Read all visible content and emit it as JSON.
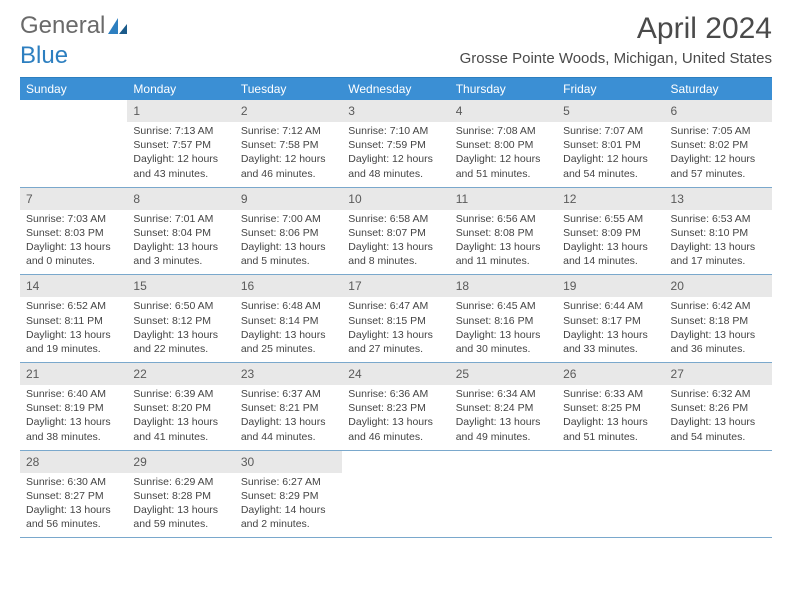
{
  "logo": {
    "text1": "General",
    "text2": "Blue"
  },
  "title": "April 2024",
  "location": "Grosse Pointe Woods, Michigan, United States",
  "colors": {
    "header_bg": "#3b8fd4",
    "header_text": "#ffffff",
    "rule": "#7aa8cc",
    "shade": "#e8e8e8",
    "text": "#444444",
    "title_text": "#4a4a4a"
  },
  "typography": {
    "title_fontsize": 30,
    "location_fontsize": 15,
    "dow_fontsize": 12,
    "daynum_fontsize": 12,
    "info_fontsize": 10.5
  },
  "layout": {
    "columns": 7,
    "rows": 5,
    "cell_min_height": 84
  },
  "dow": [
    "Sunday",
    "Monday",
    "Tuesday",
    "Wednesday",
    "Thursday",
    "Friday",
    "Saturday"
  ],
  "weeks": [
    [
      {
        "n": "",
        "sr": "",
        "ss": "",
        "dl": ""
      },
      {
        "n": "1",
        "sr": "Sunrise: 7:13 AM",
        "ss": "Sunset: 7:57 PM",
        "dl": "Daylight: 12 hours and 43 minutes."
      },
      {
        "n": "2",
        "sr": "Sunrise: 7:12 AM",
        "ss": "Sunset: 7:58 PM",
        "dl": "Daylight: 12 hours and 46 minutes."
      },
      {
        "n": "3",
        "sr": "Sunrise: 7:10 AM",
        "ss": "Sunset: 7:59 PM",
        "dl": "Daylight: 12 hours and 48 minutes."
      },
      {
        "n": "4",
        "sr": "Sunrise: 7:08 AM",
        "ss": "Sunset: 8:00 PM",
        "dl": "Daylight: 12 hours and 51 minutes."
      },
      {
        "n": "5",
        "sr": "Sunrise: 7:07 AM",
        "ss": "Sunset: 8:01 PM",
        "dl": "Daylight: 12 hours and 54 minutes."
      },
      {
        "n": "6",
        "sr": "Sunrise: 7:05 AM",
        "ss": "Sunset: 8:02 PM",
        "dl": "Daylight: 12 hours and 57 minutes."
      }
    ],
    [
      {
        "n": "7",
        "sr": "Sunrise: 7:03 AM",
        "ss": "Sunset: 8:03 PM",
        "dl": "Daylight: 13 hours and 0 minutes."
      },
      {
        "n": "8",
        "sr": "Sunrise: 7:01 AM",
        "ss": "Sunset: 8:04 PM",
        "dl": "Daylight: 13 hours and 3 minutes."
      },
      {
        "n": "9",
        "sr": "Sunrise: 7:00 AM",
        "ss": "Sunset: 8:06 PM",
        "dl": "Daylight: 13 hours and 5 minutes."
      },
      {
        "n": "10",
        "sr": "Sunrise: 6:58 AM",
        "ss": "Sunset: 8:07 PM",
        "dl": "Daylight: 13 hours and 8 minutes."
      },
      {
        "n": "11",
        "sr": "Sunrise: 6:56 AM",
        "ss": "Sunset: 8:08 PM",
        "dl": "Daylight: 13 hours and 11 minutes."
      },
      {
        "n": "12",
        "sr": "Sunrise: 6:55 AM",
        "ss": "Sunset: 8:09 PM",
        "dl": "Daylight: 13 hours and 14 minutes."
      },
      {
        "n": "13",
        "sr": "Sunrise: 6:53 AM",
        "ss": "Sunset: 8:10 PM",
        "dl": "Daylight: 13 hours and 17 minutes."
      }
    ],
    [
      {
        "n": "14",
        "sr": "Sunrise: 6:52 AM",
        "ss": "Sunset: 8:11 PM",
        "dl": "Daylight: 13 hours and 19 minutes."
      },
      {
        "n": "15",
        "sr": "Sunrise: 6:50 AM",
        "ss": "Sunset: 8:12 PM",
        "dl": "Daylight: 13 hours and 22 minutes."
      },
      {
        "n": "16",
        "sr": "Sunrise: 6:48 AM",
        "ss": "Sunset: 8:14 PM",
        "dl": "Daylight: 13 hours and 25 minutes."
      },
      {
        "n": "17",
        "sr": "Sunrise: 6:47 AM",
        "ss": "Sunset: 8:15 PM",
        "dl": "Daylight: 13 hours and 27 minutes."
      },
      {
        "n": "18",
        "sr": "Sunrise: 6:45 AM",
        "ss": "Sunset: 8:16 PM",
        "dl": "Daylight: 13 hours and 30 minutes."
      },
      {
        "n": "19",
        "sr": "Sunrise: 6:44 AM",
        "ss": "Sunset: 8:17 PM",
        "dl": "Daylight: 13 hours and 33 minutes."
      },
      {
        "n": "20",
        "sr": "Sunrise: 6:42 AM",
        "ss": "Sunset: 8:18 PM",
        "dl": "Daylight: 13 hours and 36 minutes."
      }
    ],
    [
      {
        "n": "21",
        "sr": "Sunrise: 6:40 AM",
        "ss": "Sunset: 8:19 PM",
        "dl": "Daylight: 13 hours and 38 minutes."
      },
      {
        "n": "22",
        "sr": "Sunrise: 6:39 AM",
        "ss": "Sunset: 8:20 PM",
        "dl": "Daylight: 13 hours and 41 minutes."
      },
      {
        "n": "23",
        "sr": "Sunrise: 6:37 AM",
        "ss": "Sunset: 8:21 PM",
        "dl": "Daylight: 13 hours and 44 minutes."
      },
      {
        "n": "24",
        "sr": "Sunrise: 6:36 AM",
        "ss": "Sunset: 8:23 PM",
        "dl": "Daylight: 13 hours and 46 minutes."
      },
      {
        "n": "25",
        "sr": "Sunrise: 6:34 AM",
        "ss": "Sunset: 8:24 PM",
        "dl": "Daylight: 13 hours and 49 minutes."
      },
      {
        "n": "26",
        "sr": "Sunrise: 6:33 AM",
        "ss": "Sunset: 8:25 PM",
        "dl": "Daylight: 13 hours and 51 minutes."
      },
      {
        "n": "27",
        "sr": "Sunrise: 6:32 AM",
        "ss": "Sunset: 8:26 PM",
        "dl": "Daylight: 13 hours and 54 minutes."
      }
    ],
    [
      {
        "n": "28",
        "sr": "Sunrise: 6:30 AM",
        "ss": "Sunset: 8:27 PM",
        "dl": "Daylight: 13 hours and 56 minutes."
      },
      {
        "n": "29",
        "sr": "Sunrise: 6:29 AM",
        "ss": "Sunset: 8:28 PM",
        "dl": "Daylight: 13 hours and 59 minutes."
      },
      {
        "n": "30",
        "sr": "Sunrise: 6:27 AM",
        "ss": "Sunset: 8:29 PM",
        "dl": "Daylight: 14 hours and 2 minutes."
      },
      {
        "n": "",
        "sr": "",
        "ss": "",
        "dl": ""
      },
      {
        "n": "",
        "sr": "",
        "ss": "",
        "dl": ""
      },
      {
        "n": "",
        "sr": "",
        "ss": "",
        "dl": ""
      },
      {
        "n": "",
        "sr": "",
        "ss": "",
        "dl": ""
      }
    ]
  ]
}
